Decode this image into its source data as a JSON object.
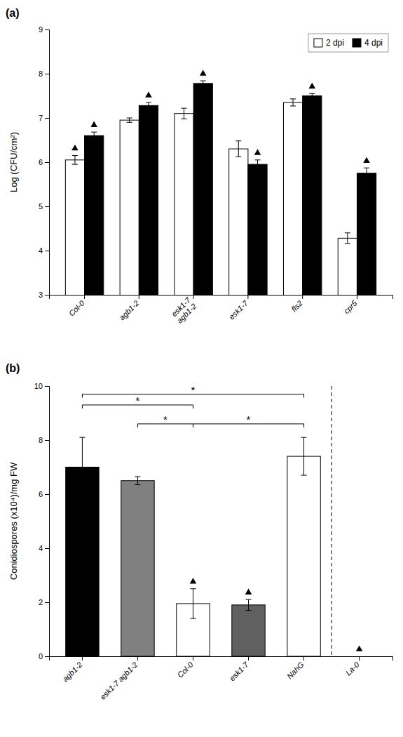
{
  "chart_data": [
    {
      "type": "bar",
      "title": "(a)",
      "categories": [
        "Col-0",
        "agb1-2",
        "esk1-7\nagb1-2",
        "esk1-7",
        "fls2",
        "cpr5"
      ],
      "series": [
        {
          "name": "2 dpi",
          "color": "white",
          "values": [
            6.05,
            6.95,
            7.1,
            6.3,
            7.35,
            4.28
          ],
          "errors": [
            0.1,
            0.05,
            0.12,
            0.18,
            0.08,
            0.12
          ],
          "triangles": [
            true,
            false,
            false,
            false,
            false,
            false
          ]
        },
        {
          "name": "4 dpi",
          "color": "black",
          "values": [
            6.6,
            7.28,
            7.78,
            5.95,
            7.5,
            5.75
          ],
          "errors": [
            0.08,
            0.07,
            0.06,
            0.1,
            0.05,
            0.12
          ],
          "triangles": [
            true,
            true,
            true,
            true,
            true,
            true
          ]
        }
      ],
      "ylabel": "Log (CFU/cm²)",
      "ylim": [
        3,
        9
      ],
      "yticks": [
        3,
        4,
        5,
        6,
        7,
        8,
        9
      ],
      "legend": "upper right",
      "grid": false
    },
    {
      "type": "bar",
      "title": "(b)",
      "categories": [
        "agb1-2",
        "esk1-7 agb1-2",
        "Col-0",
        "esk1-7",
        "NahG",
        "La-0"
      ],
      "values": [
        7.0,
        6.5,
        1.95,
        1.9,
        7.4,
        0.0
      ],
      "errors": [
        1.1,
        0.15,
        0.55,
        0.2,
        0.7,
        0.0
      ],
      "triangles": [
        false,
        false,
        true,
        true,
        false,
        true
      ],
      "colors": [
        "black",
        "#808080",
        "white",
        "#606060",
        "white",
        "none"
      ],
      "ylabel": "Conidiospores (x10⁴)/mg FW",
      "ylim": [
        0,
        10
      ],
      "yticks": [
        0,
        2,
        4,
        6,
        8,
        10
      ],
      "brackets": [
        {
          "from": "agb1-2",
          "to": "Col-0",
          "y": 9.3,
          "label": "*"
        },
        {
          "from": "esk1-7 agb1-2",
          "to": "Col-0",
          "y": 8.6,
          "label": "*"
        },
        {
          "from": "Col-0",
          "to": "NahG",
          "y": 8.6,
          "label": "*"
        },
        {
          "from": "agb1-2",
          "to": "NahG",
          "y": 9.7,
          "label": "*"
        }
      ],
      "divider_after": "NahG",
      "grid": false
    }
  ]
}
